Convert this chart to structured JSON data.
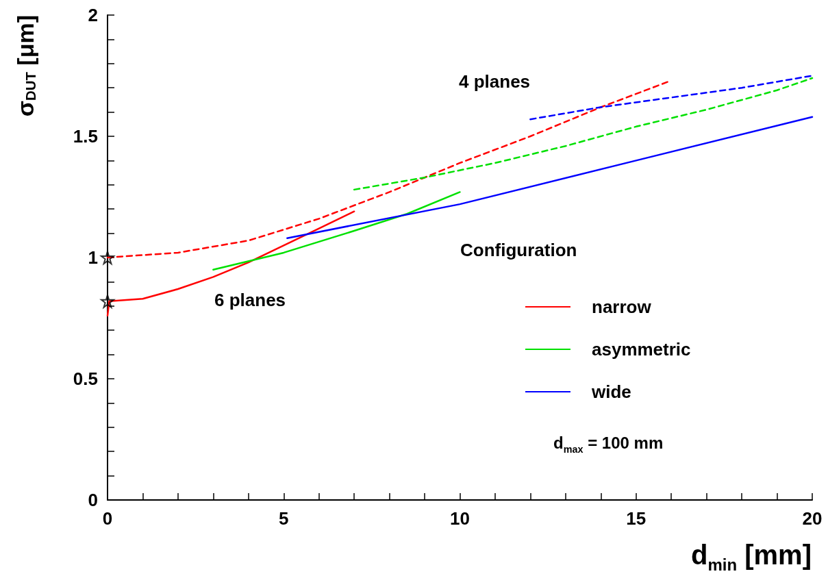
{
  "chart_data": {
    "type": "line",
    "xlabel": "d$_{min}$ [mm]",
    "ylabel": "σ$_{DUT}$ [μm]",
    "legend_title": "Configuration",
    "legend": "right",
    "grid": false,
    "marker": "none",
    "xlim": [
      0,
      20
    ],
    "ylim": [
      0,
      2
    ],
    "xticks": [
      0,
      {
        "value": 1,
        "label": null
      },
      {
        "value": 2,
        "label": null
      },
      {
        "value": 3,
        "label": null
      },
      {
        "value": 4,
        "label": null
      },
      5,
      {
        "value": 6,
        "label": null
      },
      {
        "value": 7,
        "label": null
      },
      {
        "value": 8,
        "label": null
      },
      {
        "value": 9,
        "label": null
      },
      10,
      {
        "value": 11,
        "label": null
      },
      {
        "value": 12,
        "label": null
      },
      {
        "value": 13,
        "label": null
      },
      {
        "value": 14,
        "label": null
      },
      15,
      {
        "value": 16,
        "label": null
      },
      {
        "value": 17,
        "label": null
      },
      {
        "value": 18,
        "label": null
      },
      {
        "value": 19,
        "label": null
      },
      20
    ],
    "yticks": [
      0,
      {
        "value": 0.1,
        "label": null
      },
      {
        "value": 0.2,
        "label": null
      },
      {
        "value": 0.3,
        "label": null
      },
      {
        "value": 0.4,
        "label": null
      },
      0.5,
      {
        "value": 0.6,
        "label": null
      },
      {
        "value": 0.7,
        "label": null
      },
      {
        "value": 0.8,
        "label": null
      },
      {
        "value": 0.9,
        "label": null
      },
      1,
      {
        "value": 1.1,
        "label": null
      },
      {
        "value": 1.2,
        "label": null
      },
      {
        "value": 1.3,
        "label": null
      },
      {
        "value": 1.4,
        "label": null
      },
      1.5,
      {
        "value": 1.6,
        "label": null
      },
      {
        "value": 1.7,
        "label": null
      },
      {
        "value": 1.8,
        "label": null
      },
      {
        "value": 1.9,
        "label": null
      },
      2
    ],
    "annotations": [
      "4 planes",
      "6 planes",
      "d$_{max}$ = 100 mm"
    ],
    "series": [
      {
        "name": "narrow",
        "color": "#ff0000",
        "line_style": "solid",
        "x": [
          0,
          0.05,
          1,
          2,
          3,
          4,
          5,
          6,
          7
        ],
        "values": [
          0.76,
          0.82,
          0.83,
          0.87,
          0.92,
          0.98,
          1.05,
          1.12,
          1.19
        ]
      },
      {
        "name": "asymmetric",
        "color": "#00e000",
        "line_style": "solid",
        "x": [
          3,
          5,
          7,
          8.5,
          10
        ],
        "values": [
          0.95,
          1.02,
          1.11,
          1.18,
          1.27
        ]
      },
      {
        "name": "wide",
        "color": "#0000ff",
        "line_style": "solid",
        "x": [
          5.1,
          10,
          15,
          20
        ],
        "values": [
          1.08,
          1.22,
          1.4,
          1.58
        ]
      },
      {
        "color": "#ff0000",
        "line_style": "dashed",
        "x": [
          0,
          2,
          4,
          6,
          8,
          10,
          12,
          14,
          16
        ],
        "values": [
          1.0,
          1.02,
          1.07,
          1.16,
          1.27,
          1.39,
          1.5,
          1.62,
          1.73
        ]
      },
      {
        "color": "#00e000",
        "line_style": "dashed",
        "x": [
          7,
          9,
          11,
          13,
          15,
          17,
          19,
          20
        ],
        "values": [
          1.28,
          1.33,
          1.39,
          1.46,
          1.54,
          1.61,
          1.69,
          1.74
        ]
      },
      {
        "color": "#0000ff",
        "line_style": "dashed",
        "x": [
          12,
          14,
          16,
          18,
          20
        ],
        "values": [
          1.57,
          1.62,
          1.66,
          1.7,
          1.75
        ]
      },
      {
        "type": "scatter",
        "color": "#000000",
        "marker": "star",
        "x": [
          0,
          0
        ],
        "values": [
          1.0,
          0.82
        ]
      }
    ]
  }
}
